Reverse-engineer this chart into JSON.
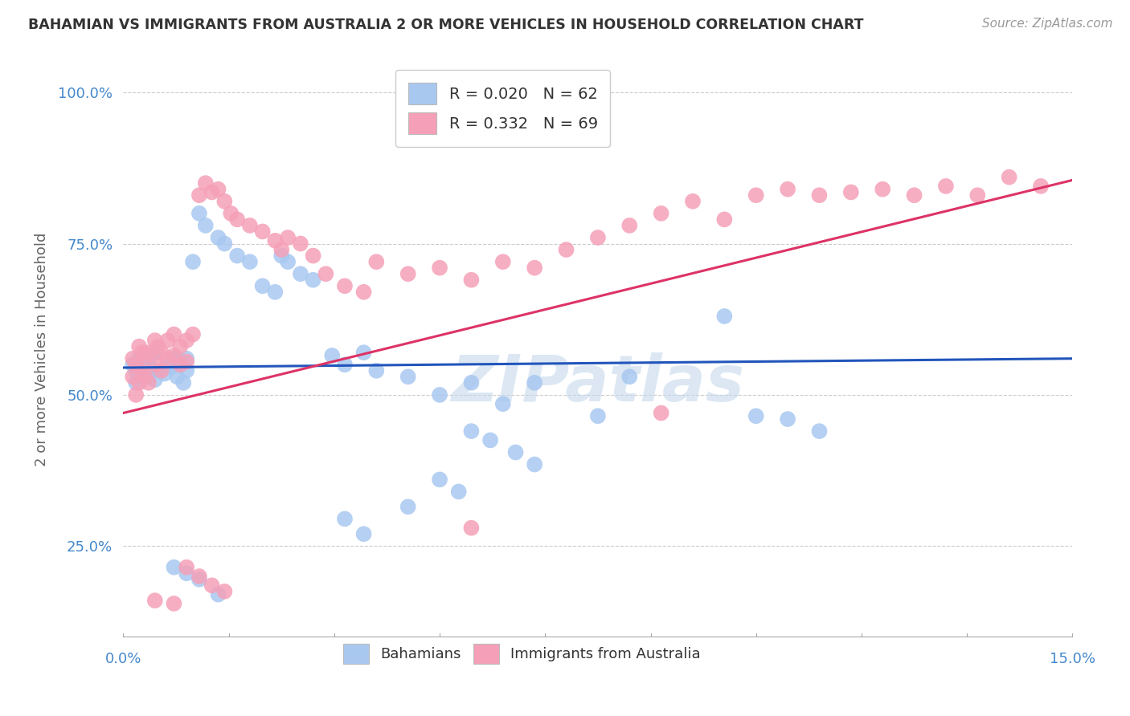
{
  "title": "BAHAMIAN VS IMMIGRANTS FROM AUSTRALIA 2 OR MORE VEHICLES IN HOUSEHOLD CORRELATION CHART",
  "source": "Source: ZipAtlas.com",
  "ylabel": "2 or more Vehicles in Household",
  "xlim": [
    0.0,
    15.0
  ],
  "ylim": [
    10.0,
    105.0
  ],
  "yticks": [
    25.0,
    50.0,
    75.0,
    100.0
  ],
  "ytick_labels": [
    "25.0%",
    "50.0%",
    "75.0%",
    "100.0%"
  ],
  "legend1_R": "0.020",
  "legend1_N": "62",
  "legend2_R": "0.332",
  "legend2_N": "69",
  "blue_color": "#A8C8F0",
  "pink_color": "#F5A0B8",
  "blue_line_color": "#2255BB",
  "pink_line_color": "#DD3366",
  "blue_dots": [
    [
      0.15,
      55.0
    ],
    [
      0.2,
      54.0
    ],
    [
      0.2,
      52.0
    ],
    [
      0.25,
      56.0
    ],
    [
      0.25,
      53.0
    ],
    [
      0.3,
      55.0
    ],
    [
      0.3,
      53.5
    ],
    [
      0.35,
      54.5
    ],
    [
      0.4,
      55.5
    ],
    [
      0.4,
      53.0
    ],
    [
      0.45,
      54.0
    ],
    [
      0.5,
      57.0
    ],
    [
      0.5,
      52.5
    ],
    [
      0.6,
      54.0
    ],
    [
      0.65,
      53.5
    ],
    [
      0.7,
      55.0
    ],
    [
      0.75,
      54.5
    ],
    [
      0.8,
      56.0
    ],
    [
      0.85,
      53.0
    ],
    [
      0.9,
      55.5
    ],
    [
      0.95,
      52.0
    ],
    [
      1.0,
      56.0
    ],
    [
      1.0,
      54.0
    ],
    [
      1.1,
      72.0
    ],
    [
      1.2,
      80.0
    ],
    [
      1.3,
      78.0
    ],
    [
      1.5,
      76.0
    ],
    [
      1.6,
      75.0
    ],
    [
      1.8,
      73.0
    ],
    [
      2.0,
      72.0
    ],
    [
      2.2,
      68.0
    ],
    [
      2.4,
      67.0
    ],
    [
      2.5,
      73.0
    ],
    [
      2.6,
      72.0
    ],
    [
      2.8,
      70.0
    ],
    [
      3.0,
      69.0
    ],
    [
      3.3,
      56.5
    ],
    [
      3.5,
      55.0
    ],
    [
      3.8,
      57.0
    ],
    [
      4.0,
      54.0
    ],
    [
      4.5,
      53.0
    ],
    [
      5.0,
      50.0
    ],
    [
      5.5,
      52.0
    ],
    [
      6.0,
      48.5
    ],
    [
      6.5,
      52.0
    ],
    [
      7.5,
      46.5
    ],
    [
      8.0,
      53.0
    ],
    [
      9.5,
      63.0
    ],
    [
      10.0,
      46.5
    ],
    [
      10.5,
      46.0
    ],
    [
      11.0,
      44.0
    ],
    [
      5.5,
      44.0
    ],
    [
      5.8,
      42.5
    ],
    [
      6.2,
      40.5
    ],
    [
      6.5,
      38.5
    ],
    [
      5.0,
      36.0
    ],
    [
      5.3,
      34.0
    ],
    [
      4.5,
      31.5
    ],
    [
      3.5,
      29.5
    ],
    [
      3.8,
      27.0
    ],
    [
      0.8,
      21.5
    ],
    [
      1.0,
      20.5
    ],
    [
      1.2,
      19.5
    ],
    [
      1.5,
      17.0
    ]
  ],
  "pink_dots": [
    [
      0.15,
      56.0
    ],
    [
      0.15,
      53.0
    ],
    [
      0.2,
      55.0
    ],
    [
      0.2,
      50.0
    ],
    [
      0.25,
      58.0
    ],
    [
      0.25,
      52.0
    ],
    [
      0.3,
      57.0
    ],
    [
      0.3,
      54.0
    ],
    [
      0.35,
      56.5
    ],
    [
      0.35,
      53.0
    ],
    [
      0.4,
      57.0
    ],
    [
      0.4,
      52.0
    ],
    [
      0.5,
      59.0
    ],
    [
      0.5,
      55.0
    ],
    [
      0.55,
      58.0
    ],
    [
      0.6,
      57.0
    ],
    [
      0.6,
      54.0
    ],
    [
      0.7,
      59.0
    ],
    [
      0.7,
      56.0
    ],
    [
      0.8,
      60.0
    ],
    [
      0.8,
      56.5
    ],
    [
      0.9,
      58.0
    ],
    [
      0.9,
      55.0
    ],
    [
      1.0,
      59.0
    ],
    [
      1.0,
      55.5
    ],
    [
      1.1,
      60.0
    ],
    [
      1.2,
      83.0
    ],
    [
      1.3,
      85.0
    ],
    [
      1.4,
      83.5
    ],
    [
      1.5,
      84.0
    ],
    [
      1.6,
      82.0
    ],
    [
      1.7,
      80.0
    ],
    [
      1.8,
      79.0
    ],
    [
      2.0,
      78.0
    ],
    [
      2.2,
      77.0
    ],
    [
      2.4,
      75.5
    ],
    [
      2.5,
      74.0
    ],
    [
      2.6,
      76.0
    ],
    [
      2.8,
      75.0
    ],
    [
      3.0,
      73.0
    ],
    [
      3.2,
      70.0
    ],
    [
      3.5,
      68.0
    ],
    [
      3.8,
      67.0
    ],
    [
      4.0,
      72.0
    ],
    [
      4.5,
      70.0
    ],
    [
      5.0,
      71.0
    ],
    [
      5.5,
      69.0
    ],
    [
      6.0,
      72.0
    ],
    [
      6.5,
      71.0
    ],
    [
      7.0,
      74.0
    ],
    [
      7.5,
      76.0
    ],
    [
      8.0,
      78.0
    ],
    [
      8.5,
      80.0
    ],
    [
      9.0,
      82.0
    ],
    [
      9.5,
      79.0
    ],
    [
      10.0,
      83.0
    ],
    [
      10.5,
      84.0
    ],
    [
      11.0,
      83.0
    ],
    [
      11.5,
      83.5
    ],
    [
      12.0,
      84.0
    ],
    [
      12.5,
      83.0
    ],
    [
      13.0,
      84.5
    ],
    [
      13.5,
      83.0
    ],
    [
      14.0,
      86.0
    ],
    [
      14.5,
      84.5
    ],
    [
      8.5,
      47.0
    ],
    [
      5.5,
      28.0
    ],
    [
      1.0,
      21.5
    ],
    [
      1.2,
      20.0
    ],
    [
      1.4,
      18.5
    ],
    [
      1.6,
      17.5
    ],
    [
      0.5,
      16.0
    ],
    [
      0.8,
      15.5
    ]
  ],
  "blue_trendline_x": [
    0.0,
    15.0
  ],
  "blue_trendline_y": [
    54.5,
    56.0
  ],
  "pink_trendline_x": [
    0.0,
    15.0
  ],
  "pink_trendline_y": [
    47.0,
    85.5
  ],
  "background_color": "#FFFFFF",
  "grid_color": "#CCCCCC",
  "title_fontsize": 12.5,
  "source_fontsize": 11,
  "tick_fontsize": 13,
  "ylabel_fontsize": 13,
  "title_color": "#333333",
  "tick_color": "#4488CC",
  "axis_label_color": "#666666",
  "watermark": "ZIPatlas",
  "watermark_color": "#C5D8EC",
  "bottom_legend_labels": [
    "Bahamians",
    "Immigrants from Australia"
  ]
}
